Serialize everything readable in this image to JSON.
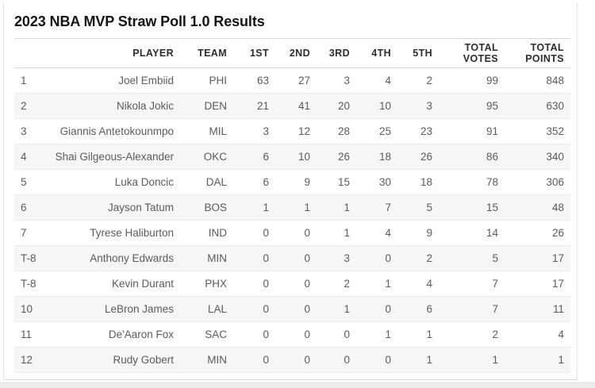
{
  "title": "2023 NBA MVP Straw Poll 1.0 Results",
  "chart_data": {
    "type": "table",
    "title": "2023 NBA MVP Straw Poll 1.0 Results",
    "columns": [
      "",
      "PLAYER",
      "TEAM",
      "1ST",
      "2ND",
      "3RD",
      "4TH",
      "5TH",
      "TOTAL\nVOTES",
      "TOTAL\nPOINTS"
    ],
    "rows": [
      [
        "1",
        "Joel Embiid",
        "PHI",
        63,
        27,
        3,
        4,
        2,
        99,
        848
      ],
      [
        "2",
        "Nikola Jokic",
        "DEN",
        21,
        41,
        20,
        10,
        3,
        95,
        630
      ],
      [
        "3",
        "Giannis Antetokounmpo",
        "MIL",
        3,
        12,
        28,
        25,
        23,
        91,
        352
      ],
      [
        "4",
        "Shai Gilgeous-Alexander",
        "OKC",
        6,
        10,
        26,
        18,
        26,
        86,
        340
      ],
      [
        "5",
        "Luka Doncic",
        "DAL",
        6,
        9,
        15,
        30,
        18,
        78,
        306
      ],
      [
        "6",
        "Jayson Tatum",
        "BOS",
        1,
        1,
        1,
        7,
        5,
        15,
        48
      ],
      [
        "7",
        "Tyrese Haliburton",
        "IND",
        0,
        0,
        1,
        4,
        9,
        14,
        26
      ],
      [
        "T-8",
        "Anthony Edwards",
        "MIN",
        0,
        0,
        3,
        0,
        2,
        5,
        17
      ],
      [
        "T-8",
        "Kevin Durant",
        "PHX",
        0,
        0,
        2,
        1,
        4,
        7,
        17
      ],
      [
        "10",
        "LeBron James",
        "LAL",
        0,
        0,
        1,
        0,
        6,
        7,
        11
      ],
      [
        "11",
        "De'Aaron Fox",
        "SAC",
        0,
        0,
        0,
        1,
        1,
        2,
        4
      ],
      [
        "12",
        "Rudy Gobert",
        "MIN",
        0,
        0,
        0,
        0,
        1,
        1,
        1
      ]
    ]
  },
  "colors": {
    "title_text": "#141416",
    "header_text": "#2d2d2f",
    "body_text": "#5b5b5d",
    "row_stripe": "#f6f6f7",
    "row_divider": "#ededee",
    "header_border": "#d8d8d9",
    "card_border": "#e3e3e4",
    "footer_strip": "#ececec"
  }
}
